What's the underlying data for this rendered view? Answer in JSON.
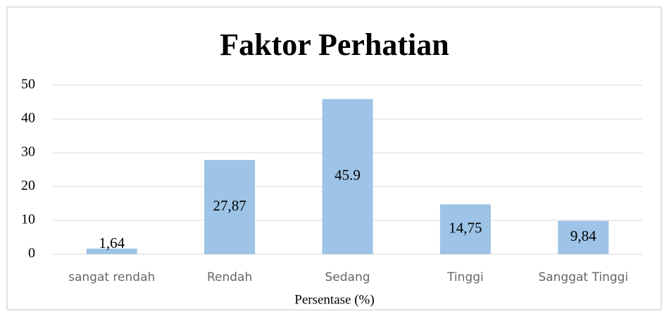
{
  "chart_data": {
    "type": "bar",
    "title": "Faktor Perhatian",
    "x_label": "Persentase (%)",
    "categories": [
      "sangat rendah",
      "Rendah",
      "Sedang",
      "Tinggi",
      "Sanggat Tinggi"
    ],
    "values": [
      1.64,
      27.87,
      45.9,
      14.75,
      9.84
    ],
    "value_labels": [
      "1,64",
      "27,87",
      "45.9",
      "14,75",
      "9,84"
    ],
    "color": "#9dc3e6",
    "ylim": [
      0,
      50
    ],
    "yticks": [
      0,
      10,
      20,
      30,
      40,
      50
    ],
    "grid": true
  }
}
